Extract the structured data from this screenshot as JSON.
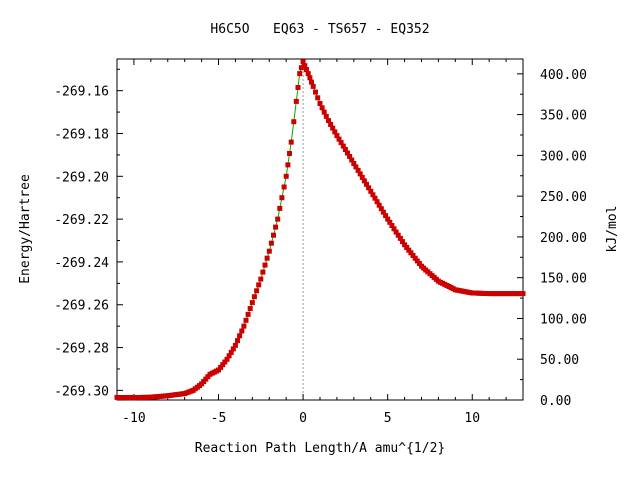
{
  "chart_data": {
    "type": "line",
    "title": "H6C5O   EQ63 - TS657 - EQ352",
    "xlabel": "Reaction Path Length/A amu^{1/2}",
    "ylabel": "Energy/Hartree",
    "y2label": "kJ/mol",
    "xlim": [
      -11,
      13
    ],
    "ylim": [
      -269.3045,
      -269.1452
    ],
    "y2lim": [
      0,
      418.2
    ],
    "x_ticks": [
      -10,
      -5,
      0,
      5,
      10
    ],
    "x_tick_labels": [
      "-10",
      "-5",
      "0",
      "5",
      "10"
    ],
    "y_ticks": [
      -269.16,
      -269.18,
      -269.2,
      -269.22,
      -269.24,
      -269.26,
      -269.28,
      -269.3
    ],
    "y_tick_labels": [
      "-269.16",
      "-269.18",
      "-269.20",
      "-269.22",
      "-269.24",
      "-269.26",
      "-269.28",
      "-269.30"
    ],
    "y2_ticks": [
      400,
      350,
      300,
      250,
      200,
      150,
      100,
      50,
      0
    ],
    "y2_tick_labels": [
      "400.00",
      "350.00",
      "300.00",
      "250.00",
      "200.00",
      "150.00",
      "100.00",
      "50.00",
      "0.00"
    ],
    "ts_x": 0,
    "marker_color": "#cc0000",
    "line_color": "#00aa00",
    "ts_line_color": "#999999",
    "series": [
      {
        "x": [
          -11.0,
          -10.0,
          -9.0,
          -8.0,
          -7.5,
          -7.0,
          -6.5,
          -6.0,
          -5.5,
          -5.0,
          -4.5,
          -4.0,
          -3.5,
          -3.0,
          -2.5,
          -2.0,
          -1.5,
          -1.0,
          -0.7,
          -0.4,
          -0.2,
          0.0,
          0.3,
          0.6,
          1.0,
          1.5,
          2.0,
          3.0,
          4.0,
          5.0,
          6.0,
          7.0,
          8.0,
          9.0,
          10.0,
          11.0,
          12.0,
          13.0
        ],
        "y": [
          -269.3033,
          -269.3034,
          -269.3032,
          -269.3025,
          -269.302,
          -269.3015,
          -269.3,
          -269.297,
          -269.2925,
          -269.2905,
          -269.2855,
          -269.279,
          -269.27,
          -269.259,
          -269.248,
          -269.235,
          -269.22,
          -269.2,
          -269.184,
          -269.165,
          -269.152,
          -269.1465,
          -269.152,
          -269.158,
          -269.166,
          -269.174,
          -269.181,
          -269.194,
          -269.207,
          -269.22,
          -269.232,
          -269.242,
          -269.249,
          -269.253,
          -269.2545,
          -269.2548,
          -269.2548,
          -269.2548
        ]
      }
    ]
  }
}
